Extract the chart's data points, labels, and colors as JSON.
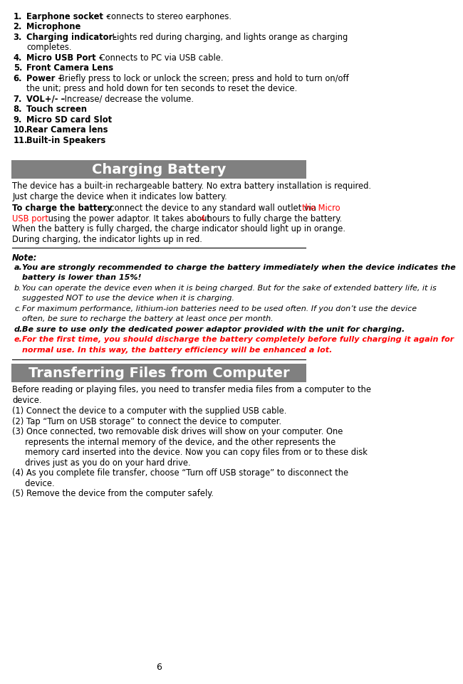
{
  "page_number": "6",
  "bg_color": "#ffffff",
  "header_bg": "#808080",
  "header_text_color": "#ffffff",
  "section1_title": "Charging Battery",
  "section2_title": "Transferring Files from Computer",
  "red_color": "#ff0000",
  "black_color": "#000000",
  "list_items_top": [
    {
      "num": "1.",
      "bold": "Earphone socket –",
      "normal": " connects to stereo earphones."
    },
    {
      "num": "2.",
      "bold": "Microphone",
      "normal": ""
    },
    {
      "num": "3.",
      "bold": "Charging indicator–",
      "normal": " Lights red during charging, and lights orange as charging\n     completes."
    },
    {
      "num": "4.",
      "bold": "Micro USB Port –",
      "normal": " Connects to PC via USB cable."
    },
    {
      "num": "5.",
      "bold": "Front Camera Lens",
      "normal": ""
    },
    {
      "num": "6.",
      "bold": "Power –",
      "normal": "Briefly press to lock or unlock the screen; press and hold to turn on/off\n     the unit; press and hold down for ten seconds to reset the device."
    },
    {
      "num": "7.",
      "bold": "VOL+/- –",
      "normal": " Increase/ decrease the volume."
    },
    {
      "num": "8.",
      "bold": "Touch screen",
      "normal": ""
    },
    {
      "num": "9.",
      "bold": "Micro SD card Slot",
      "normal": ""
    },
    {
      "num": "10.",
      "bold": "Rear Camera lens",
      "normal": ""
    },
    {
      "num": "11.",
      "bold": "Built-in Speakers",
      "normal": ""
    }
  ],
  "charging_para1": "The device has a built-in rechargeable battery. No extra battery installation is required.\nJust charge the device when it indicates low battery.",
  "charging_para2_bold": "To charge the battery",
  "charging_para2_normal": ", connect the device to any standard wall outlet via ",
  "charging_para2_red": "the Micro\nUSB port",
  "charging_para2_end": " using the power adaptor. It takes about ",
  "charging_para2_4": "4",
  "charging_para2_final": " hours to fully charge the battery.\nWhen the battery is fully charged, the charge indicator should light up in orange.\nDuring charging, the indicator lights up in red.",
  "note_label": "Note:",
  "notes": [
    {
      "letter": "a.",
      "bold": true,
      "italic": true,
      "red": false,
      "text": "You are strongly recommended to charge the battery immediately when the device indicates the\nbattery is lower than 15%!"
    },
    {
      "letter": "b.",
      "bold": false,
      "italic": true,
      "red": false,
      "text": "You can operate the device even when it is being charged. But for the sake of extended battery life, it is\nsuggested NOT to use the device when it is charging."
    },
    {
      "letter": "c.",
      "bold": false,
      "italic": true,
      "red": false,
      "text": "For maximum performance, lithium-ion batteries need to be used often. If you don’t use the device\noften, be sure to recharge the battery at least once per month."
    },
    {
      "letter": "d.",
      "bold": true,
      "italic": true,
      "red": false,
      "text": "Be sure to use only the dedicated power adaptor provided with the unit for charging."
    },
    {
      "letter": "e.",
      "bold": true,
      "italic": true,
      "red": true,
      "text": "For the first time, you should discharge the battery completely before fully charging it again for\nnormal use. In this way, the battery efficiency will be enhanced a lot."
    }
  ],
  "transfer_para1": "Before reading or playing files, you need to transfer media files from a computer to the\ndevice.",
  "transfer_steps": [
    "(1) Connect the device to a computer with the supplied USB cable.",
    "(2) Tap “Turn on USB storage” to connect the device to computer.",
    "(3) Once connected, two removable disk drives will show on your computer. One\n     represents the internal memory of the device, and the other represents the\n     memory card inserted into the device. Now you can copy files from or to these disk\n     drives just as you do on your hard drive.",
    "(4) As you complete file transfer, choose “Turn off USB storage” to disconnect the\n     device.",
    "(5) Remove the device from the computer safely."
  ]
}
